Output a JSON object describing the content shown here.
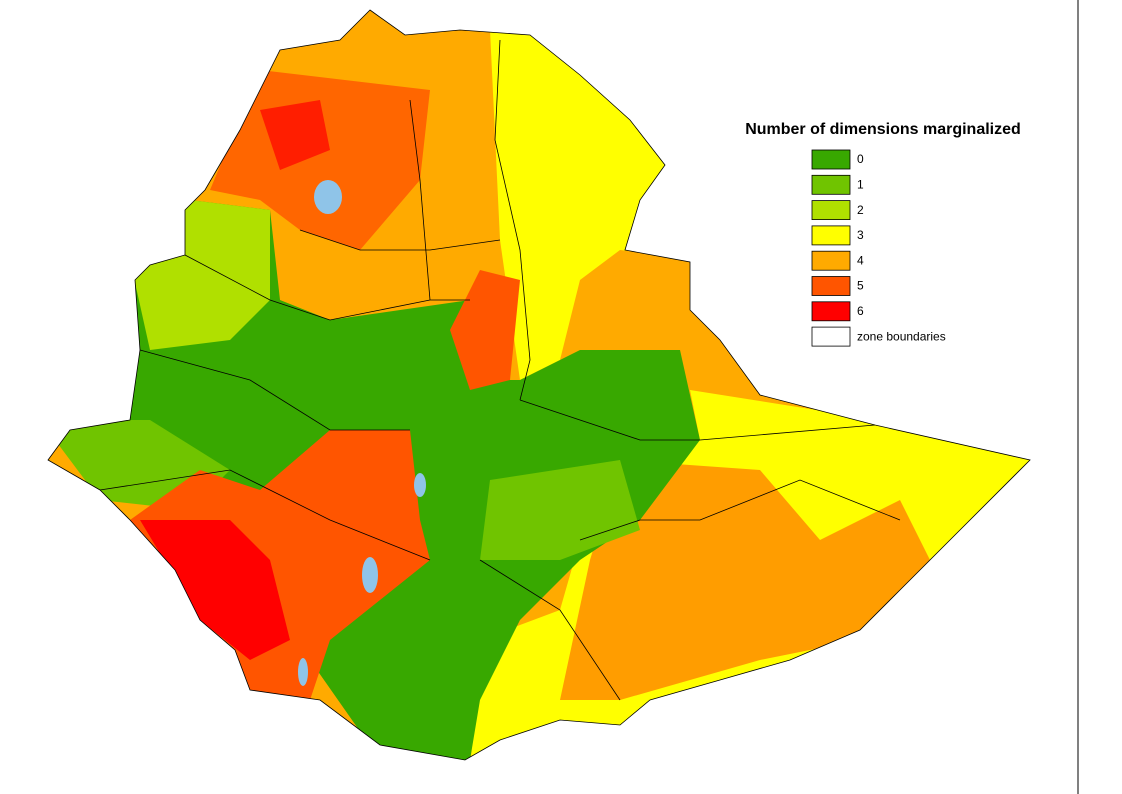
{
  "legend": {
    "title": "Number of dimensions marginalized",
    "items": [
      {
        "label": "0",
        "color": "#38a800"
      },
      {
        "label": "1",
        "color": "#70c400"
      },
      {
        "label": "2",
        "color": "#b0e000"
      },
      {
        "label": "3",
        "color": "#ffff00"
      },
      {
        "label": "4",
        "color": "#ffaa00"
      },
      {
        "label": "5",
        "color": "#ff5500"
      },
      {
        "label": "6",
        "color": "#ff0000"
      }
    ],
    "boundary_label": "zone boundaries"
  }
}
